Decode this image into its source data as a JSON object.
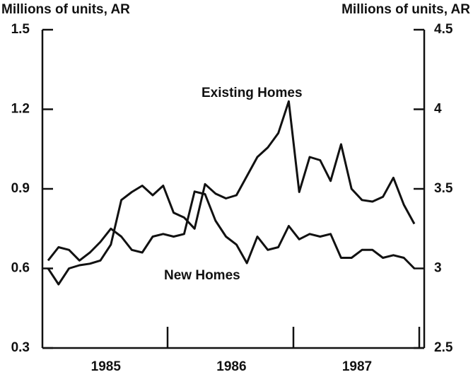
{
  "chart_data": {
    "type": "line",
    "y_label": "Millions of units, AR",
    "y2_label": "Millions of units, AR",
    "annotations": [
      "Existing Homes",
      "New Homes"
    ],
    "categories": [
      null,
      null,
      null,
      null,
      null,
      null,
      "1985",
      null,
      null,
      null,
      null,
      null,
      null,
      null,
      null,
      null,
      null,
      null,
      "1986",
      null,
      null,
      null,
      null,
      null,
      null,
      null,
      null,
      null,
      null,
      null,
      "1987",
      null,
      null,
      null,
      null,
      null
    ],
    "series": [
      {
        "name": "New Homes",
        "color": "#111111",
        "axis": "y",
        "values": [
          0.63,
          0.68,
          0.67,
          0.63,
          0.66,
          0.7,
          0.75,
          0.72,
          0.67,
          0.66,
          0.72,
          0.73,
          0.72,
          0.73,
          0.89,
          0.88,
          0.78,
          0.72,
          0.69,
          0.62,
          0.72,
          0.67,
          0.68,
          0.76,
          0.71,
          0.73,
          0.72,
          0.73,
          0.64,
          0.64,
          0.67,
          0.67,
          0.64,
          0.65,
          0.64,
          0.6
        ]
      },
      {
        "name": "Existing Homes",
        "color": "#111111",
        "axis": "y2",
        "values": [
          3.0,
          2.9,
          3.0,
          3.02,
          3.03,
          3.05,
          3.15,
          3.43,
          3.48,
          3.52,
          3.46,
          3.52,
          3.35,
          3.32,
          3.25,
          3.53,
          3.47,
          3.44,
          3.46,
          3.58,
          3.7,
          3.76,
          3.85,
          4.05,
          3.48,
          3.7,
          3.68,
          3.55,
          3.78,
          3.5,
          3.43,
          3.42,
          3.45,
          3.57,
          3.4,
          3.28
        ]
      }
    ],
    "ylim": [
      0.3,
      1.5
    ],
    "yticks": [
      0.3,
      0.6,
      0.9,
      1.2,
      1.5
    ],
    "y2lim": [
      2.5,
      4.5
    ],
    "y2ticks": [
      2.5,
      3,
      3.5,
      4,
      4.5
    ]
  }
}
